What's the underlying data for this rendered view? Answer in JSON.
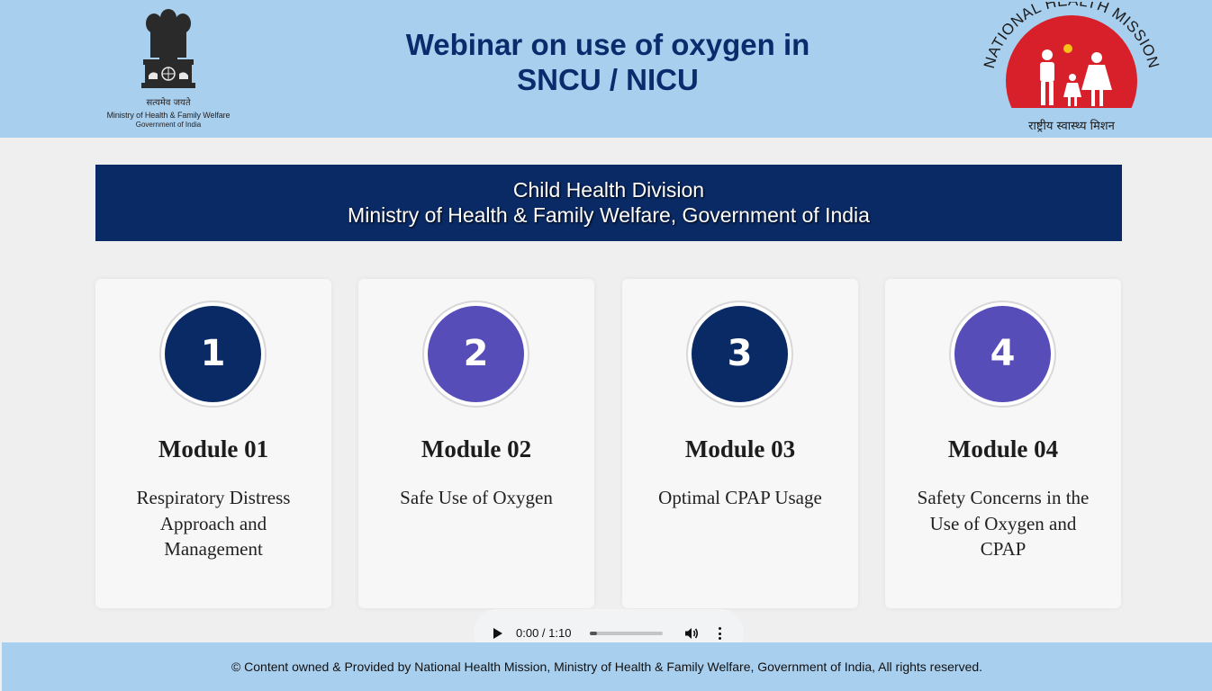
{
  "header": {
    "title_line1": "Webinar on use of oxygen in",
    "title_line2": "SNCU / NICU",
    "emblem": {
      "icon": "ashoka-emblem-icon",
      "motto": "सत्यमेव जयते",
      "ministry": "Ministry of Health & Family Welfare",
      "government": "Government of India"
    },
    "nhm_logo": {
      "icon": "nhm-logo-icon",
      "arc_text": "NATIONAL HEALTH MISSION",
      "hindi_text": "राष्ट्रीय स्वास्थ्य मिशन"
    }
  },
  "banner": {
    "line1": "Child Health Division",
    "line2": "Ministry of Health & Family Welfare, Government of India"
  },
  "modules": [
    {
      "number": "1",
      "title": "Module 01",
      "description": "Respiratory Distress Approach and Management",
      "color": "#0a2a66"
    },
    {
      "number": "2",
      "title": "Module 02",
      "description": "Safe Use of Oxygen",
      "color": "#574db9"
    },
    {
      "number": "3",
      "title": "Module 03",
      "description": "Optimal CPAP Usage",
      "color": "#0a2a66"
    },
    {
      "number": "4",
      "title": "Module 04",
      "description": "Safety Concerns in the Use of Oxygen and CPAP",
      "color": "#574db9"
    }
  ],
  "audio_player": {
    "time": "0:00 / 1:10",
    "progress": 0.1,
    "icons": [
      "play-icon",
      "volume-icon",
      "more-options-icon"
    ]
  },
  "footer": {
    "text": "© Content owned & Provided by National Health Mission, Ministry of Health & Family Welfare, Government of India, All rights reserved."
  },
  "colors": {
    "header_bg": "#a9cfef",
    "banner_bg": "#0a2a66",
    "accent_purple": "#574db9",
    "page_bg": "#efefef"
  }
}
